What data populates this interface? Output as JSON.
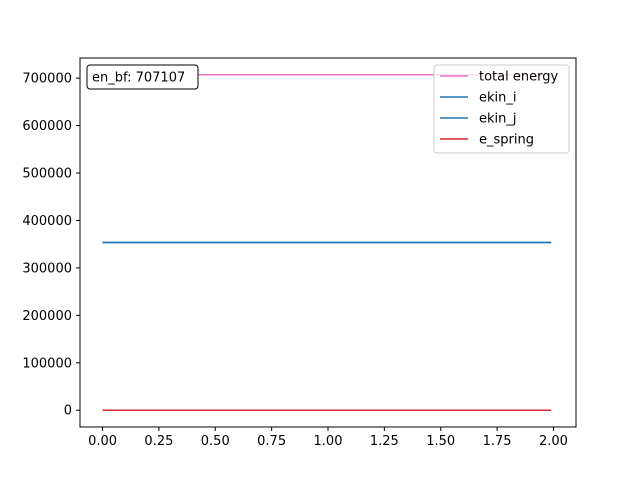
{
  "chart_data": {
    "type": "line",
    "title": "",
    "xlabel": "",
    "ylabel": "",
    "xlim": [
      -0.1,
      2.1
    ],
    "ylim": [
      -35355,
      742462
    ],
    "x_ticks": [
      0.0,
      0.25,
      0.5,
      0.75,
      1.0,
      1.25,
      1.5,
      1.75,
      2.0
    ],
    "x_tick_labels": [
      "0.00",
      "0.25",
      "0.50",
      "0.75",
      "1.00",
      "1.25",
      "1.50",
      "1.75",
      "2.00"
    ],
    "y_ticks": [
      0,
      100000,
      200000,
      300000,
      400000,
      500000,
      600000,
      700000
    ],
    "y_tick_labels": [
      "0",
      "100000",
      "200000",
      "300000",
      "400000",
      "500000",
      "600000",
      "700000"
    ],
    "grid": false,
    "legend_position": "upper right",
    "series": [
      {
        "name": "total energy",
        "color": "#e377c2",
        "x": [
          0.0,
          1.99
        ],
        "y": [
          707107,
          707107
        ]
      },
      {
        "name": "ekin_i",
        "color": "#1f77b4",
        "x": [
          0.0,
          1.99
        ],
        "y": [
          353553,
          353553
        ]
      },
      {
        "name": "ekin_j",
        "color": "#1f77b4",
        "x": [
          0.0,
          1.99
        ],
        "y": [
          353553,
          353553
        ]
      },
      {
        "name": "e_spring",
        "color": "#d62728",
        "x": [
          0.0,
          1.99
        ],
        "y": [
          0,
          0
        ]
      }
    ],
    "annotations": [
      {
        "text": "en_bf: 707107",
        "position": "upper left"
      }
    ]
  }
}
